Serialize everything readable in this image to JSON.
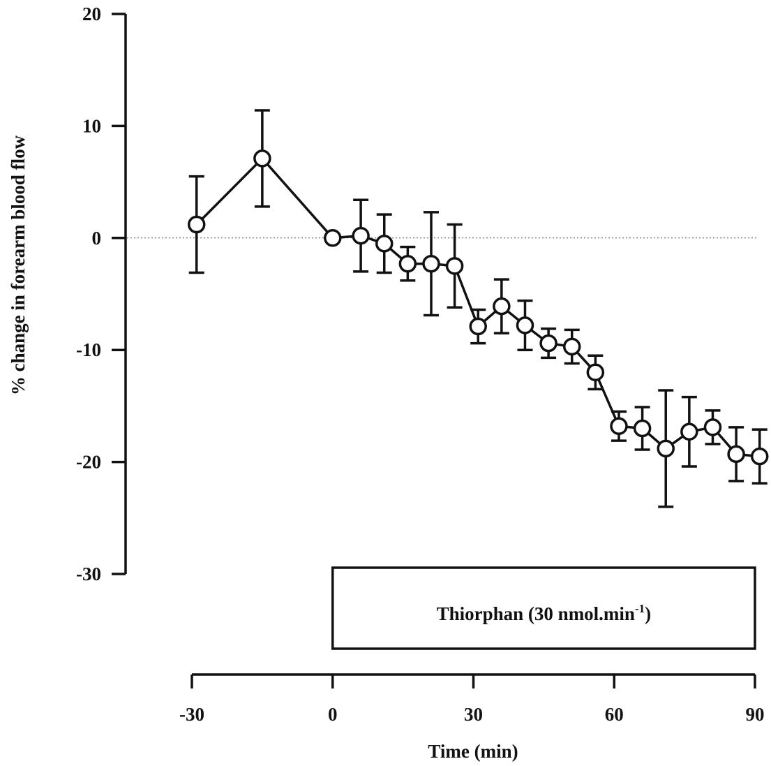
{
  "chart_data": {
    "type": "line",
    "ylabel": "% change in forearm blood flow",
    "xlabel": "Time (min)",
    "ylim": [
      -30,
      20
    ],
    "xlim": [
      -30,
      90
    ],
    "y_ticks": [
      20,
      10,
      0,
      -10,
      -20,
      -30
    ],
    "x_ticks": [
      -30,
      0,
      30,
      60,
      90
    ],
    "reference_line": {
      "y": 0,
      "style": "dotted"
    },
    "grid": false,
    "series": [
      {
        "marker": "open-circle",
        "points": [
          {
            "x": -29,
            "y": 1.2,
            "err": 4.3
          },
          {
            "x": -15,
            "y": 7.1,
            "err": 4.3
          },
          {
            "x": 0,
            "y": 0.0,
            "err": 0
          },
          {
            "x": 6,
            "y": 0.2,
            "err": 3.2
          },
          {
            "x": 11,
            "y": -0.5,
            "err": 2.6
          },
          {
            "x": 16,
            "y": -2.3,
            "err": 1.5
          },
          {
            "x": 21,
            "y": -2.3,
            "err": 4.6
          },
          {
            "x": 26,
            "y": -2.5,
            "err": 3.7
          },
          {
            "x": 31,
            "y": -7.9,
            "err": 1.5
          },
          {
            "x": 36,
            "y": -6.1,
            "err": 2.4
          },
          {
            "x": 41,
            "y": -7.8,
            "err": 2.2
          },
          {
            "x": 46,
            "y": -9.4,
            "err": 1.3
          },
          {
            "x": 51,
            "y": -9.7,
            "err": 1.5
          },
          {
            "x": 56,
            "y": -12.0,
            "err": 1.5
          },
          {
            "x": 61,
            "y": -16.8,
            "err": 1.3
          },
          {
            "x": 66,
            "y": -17.0,
            "err": 1.9
          },
          {
            "x": 71,
            "y": -18.8,
            "err": 5.2
          },
          {
            "x": 76,
            "y": -17.3,
            "err": 3.1
          },
          {
            "x": 81,
            "y": -16.9,
            "err": 1.5
          },
          {
            "x": 86,
            "y": -19.3,
            "err": 2.4
          },
          {
            "x": 91,
            "y": -19.5,
            "err": 2.4
          }
        ]
      }
    ],
    "treatment_box": {
      "label": "Thiorphan (30 nmol.min",
      "superscript": "-1",
      "label_close": ")",
      "x_start": 0,
      "x_end": 90
    }
  }
}
